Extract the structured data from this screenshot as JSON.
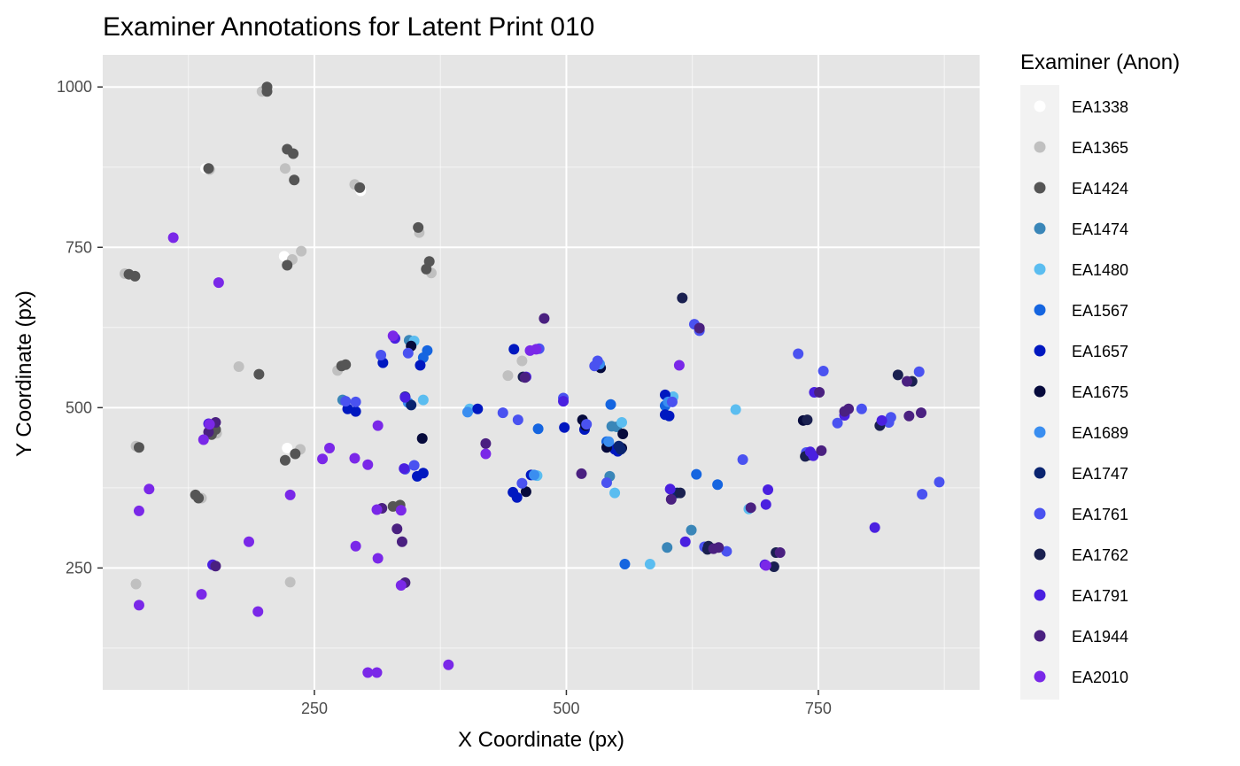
{
  "chart_data": {
    "type": "scatter",
    "title": "Examiner Annotations for Latent Print 010",
    "xlabel": "X Coordinate (px)",
    "ylabel": "Y Coordinate (px)",
    "xlim": [
      40,
      910
    ],
    "ylim": [
      60,
      1050
    ],
    "x_ticks": [
      250,
      500,
      750
    ],
    "y_ticks": [
      250,
      500,
      750,
      1000
    ],
    "x_tick_labels": [
      "250",
      "500",
      "750"
    ],
    "y_tick_labels": [
      "250",
      "500",
      "750",
      "1000"
    ],
    "grid": true,
    "panel_background": "#e5e5e5",
    "grid_color": "#ffffff",
    "legend_title": "Examiner (Anon)",
    "legend_position": "right",
    "series": [
      {
        "name": "EA1338",
        "color": "#ffffff",
        "points": [
          [
            152,
            473
          ],
          [
            203,
            993
          ],
          [
            220,
            736
          ],
          [
            223,
            437
          ],
          [
            142,
            873
          ],
          [
            296,
            838
          ],
          [
            353,
            776
          ]
        ]
      },
      {
        "name": "EA1365",
        "color": "#c0c0c0",
        "points": [
          [
            73,
            225
          ],
          [
            226,
            228
          ],
          [
            175,
            564
          ],
          [
            198,
            993
          ],
          [
            221,
            873
          ],
          [
            237,
            744
          ],
          [
            228,
            731
          ],
          [
            273,
            558
          ],
          [
            290,
            848
          ],
          [
            442,
            550
          ],
          [
            456,
            573
          ],
          [
            73,
            440
          ],
          [
            153,
            460
          ],
          [
            138,
            359
          ],
          [
            354,
            773
          ],
          [
            366,
            710
          ],
          [
            146,
            871
          ],
          [
            62,
            709
          ],
          [
            236,
            435
          ]
        ]
      },
      {
        "name": "EA1424",
        "color": "#555555",
        "points": [
          [
            203,
            1000
          ],
          [
            203,
            993
          ],
          [
            223,
            903
          ],
          [
            229,
            896
          ],
          [
            230,
            855
          ],
          [
            145,
            873
          ],
          [
            66,
            708
          ],
          [
            72,
            705
          ],
          [
            223,
            722
          ],
          [
            295,
            843
          ],
          [
            353,
            781
          ],
          [
            364,
            728
          ],
          [
            361,
            716
          ],
          [
            195,
            552
          ],
          [
            277,
            565
          ],
          [
            281,
            567
          ],
          [
            76,
            438
          ],
          [
            152,
            466
          ],
          [
            148,
            458
          ],
          [
            132,
            364
          ],
          [
            135,
            359
          ],
          [
            221,
            418
          ],
          [
            231,
            428
          ],
          [
            328,
            346
          ],
          [
            335,
            348
          ]
        ]
      },
      {
        "name": "EA1474",
        "color": "#3a86b8",
        "points": [
          [
            278,
            512
          ],
          [
            344,
            605
          ],
          [
            545,
            471
          ],
          [
            543,
            393
          ],
          [
            624,
            309
          ],
          [
            600,
            282
          ],
          [
            550,
            470
          ]
        ]
      },
      {
        "name": "EA1480",
        "color": "#5bbdf0",
        "points": [
          [
            349,
            604
          ],
          [
            358,
            512
          ],
          [
            542,
            445
          ],
          [
            555,
            477
          ],
          [
            583,
            256
          ],
          [
            668,
            497
          ],
          [
            606,
            517
          ],
          [
            681,
            342
          ],
          [
            548,
            367
          ],
          [
            471,
            394
          ],
          [
            404,
            498
          ]
        ]
      },
      {
        "name": "EA1567",
        "color": "#1565e0",
        "points": [
          [
            362,
            589
          ],
          [
            358,
            578
          ],
          [
            544,
            505
          ],
          [
            598,
            503
          ],
          [
            629,
            396
          ],
          [
            650,
            380
          ],
          [
            558,
            256
          ],
          [
            540,
            447
          ],
          [
            472,
            467
          ]
        ]
      },
      {
        "name": "EA1657",
        "color": "#0018c0",
        "points": [
          [
            283,
            498
          ],
          [
            291,
            494
          ],
          [
            318,
            570
          ],
          [
            352,
            393
          ],
          [
            355,
            566
          ],
          [
            358,
            398
          ],
          [
            412,
            498
          ],
          [
            447,
            368
          ],
          [
            451,
            360
          ],
          [
            448,
            591
          ],
          [
            465,
            395
          ],
          [
            498,
            469
          ],
          [
            518,
            466
          ],
          [
            548,
            435
          ],
          [
            551,
            432
          ],
          [
            602,
            487
          ],
          [
            598,
            489
          ],
          [
            598,
            520
          ]
        ]
      },
      {
        "name": "EA1675",
        "color": "#060a3c",
        "points": [
          [
            346,
            596
          ],
          [
            357,
            452
          ],
          [
            460,
            369
          ],
          [
            516,
            481
          ],
          [
            519,
            472
          ],
          [
            534,
            562
          ],
          [
            555,
            437
          ],
          [
            556,
            459
          ],
          [
            735,
            480
          ],
          [
            540,
            438
          ]
        ]
      },
      {
        "name": "EA1689",
        "color": "#3a8ef0",
        "points": [
          [
            343,
            508
          ],
          [
            533,
            568
          ],
          [
            542,
            447
          ],
          [
            601,
            509
          ],
          [
            468,
            395
          ],
          [
            402,
            493
          ]
        ]
      },
      {
        "name": "EA1747",
        "color": "#0a2470",
        "points": [
          [
            340,
            517
          ],
          [
            346,
            504
          ],
          [
            610,
            367
          ],
          [
            554,
            435
          ],
          [
            552,
            440
          ]
        ]
      },
      {
        "name": "EA1761",
        "color": "#4a52f0",
        "points": [
          [
            291,
            509
          ],
          [
            316,
            582
          ],
          [
            343,
            585
          ],
          [
            349,
            410
          ],
          [
            340,
            404
          ],
          [
            452,
            481
          ],
          [
            437,
            492
          ],
          [
            456,
            382
          ],
          [
            473,
            592
          ],
          [
            497,
            515
          ],
          [
            540,
            383
          ],
          [
            520,
            474
          ],
          [
            528,
            565
          ],
          [
            531,
            573
          ],
          [
            605,
            509
          ],
          [
            627,
            630
          ],
          [
            632,
            620
          ],
          [
            637,
            283
          ],
          [
            659,
            276
          ],
          [
            675,
            419
          ],
          [
            730,
            584
          ],
          [
            738,
            430
          ],
          [
            755,
            557
          ],
          [
            769,
            476
          ],
          [
            793,
            498
          ],
          [
            820,
            477
          ],
          [
            822,
            485
          ],
          [
            850,
            556
          ],
          [
            853,
            365
          ],
          [
            870,
            384
          ],
          [
            281,
            510
          ]
        ]
      },
      {
        "name": "EA1762",
        "color": "#1a2050",
        "points": [
          [
            615,
            671
          ],
          [
            613,
            367
          ],
          [
            641,
            284
          ],
          [
            640,
            279
          ],
          [
            706,
            252
          ],
          [
            708,
            274
          ],
          [
            737,
            424
          ],
          [
            741,
            426
          ],
          [
            739,
            481
          ],
          [
            811,
            472
          ],
          [
            829,
            551
          ],
          [
            843,
            541
          ],
          [
            457,
            548
          ]
        ]
      },
      {
        "name": "EA1791",
        "color": "#4a20e0",
        "points": [
          [
            330,
            608
          ],
          [
            340,
            516
          ],
          [
            339,
            405
          ],
          [
            460,
            548
          ],
          [
            497,
            510
          ],
          [
            603,
            373
          ],
          [
            618,
            291
          ],
          [
            697,
            255
          ],
          [
            698,
            349
          ],
          [
            700,
            372
          ],
          [
            742,
            431
          ],
          [
            745,
            425
          ],
          [
            746,
            524
          ],
          [
            776,
            488
          ],
          [
            813,
            480
          ],
          [
            806,
            313
          ],
          [
            145,
            475
          ],
          [
            149,
            255
          ]
        ]
      },
      {
        "name": "EA1944",
        "color": "#4a2080",
        "points": [
          [
            478,
            639
          ],
          [
            459,
            547
          ],
          [
            420,
            444
          ],
          [
            515,
            397
          ],
          [
            604,
            357
          ],
          [
            646,
            280
          ],
          [
            651,
            282
          ],
          [
            683,
            344
          ],
          [
            632,
            624
          ],
          [
            712,
            274
          ],
          [
            753,
            433
          ],
          [
            751,
            524
          ],
          [
            780,
            498
          ],
          [
            776,
            494
          ],
          [
            838,
            541
          ],
          [
            840,
            487
          ],
          [
            852,
            492
          ],
          [
            317,
            343
          ],
          [
            332,
            311
          ],
          [
            337,
            291
          ],
          [
            340,
            227
          ],
          [
            152,
            253
          ],
          [
            145,
            462
          ],
          [
            152,
            477
          ]
        ]
      },
      {
        "name": "EA2010",
        "color": "#7a28e8",
        "points": [
          [
            110,
            765
          ],
          [
            155,
            695
          ],
          [
            328,
            612
          ],
          [
            313,
            472
          ],
          [
            265,
            437
          ],
          [
            258,
            420
          ],
          [
            290,
            421
          ],
          [
            303,
            411
          ],
          [
            226,
            364
          ],
          [
            185,
            291
          ],
          [
            291,
            284
          ],
          [
            312,
            341
          ],
          [
            313,
            265
          ],
          [
            336,
            223
          ],
          [
            336,
            340
          ],
          [
            303,
            87
          ],
          [
            312,
            87
          ],
          [
            383,
            99
          ],
          [
            194,
            182
          ],
          [
            138,
            209
          ],
          [
            76,
            192
          ],
          [
            76,
            339
          ],
          [
            86,
            373
          ],
          [
            140,
            450
          ],
          [
            146,
            474
          ],
          [
            464,
            589
          ],
          [
            470,
            591
          ],
          [
            420,
            428
          ],
          [
            612,
            566
          ],
          [
            698,
            254
          ]
        ]
      }
    ]
  }
}
